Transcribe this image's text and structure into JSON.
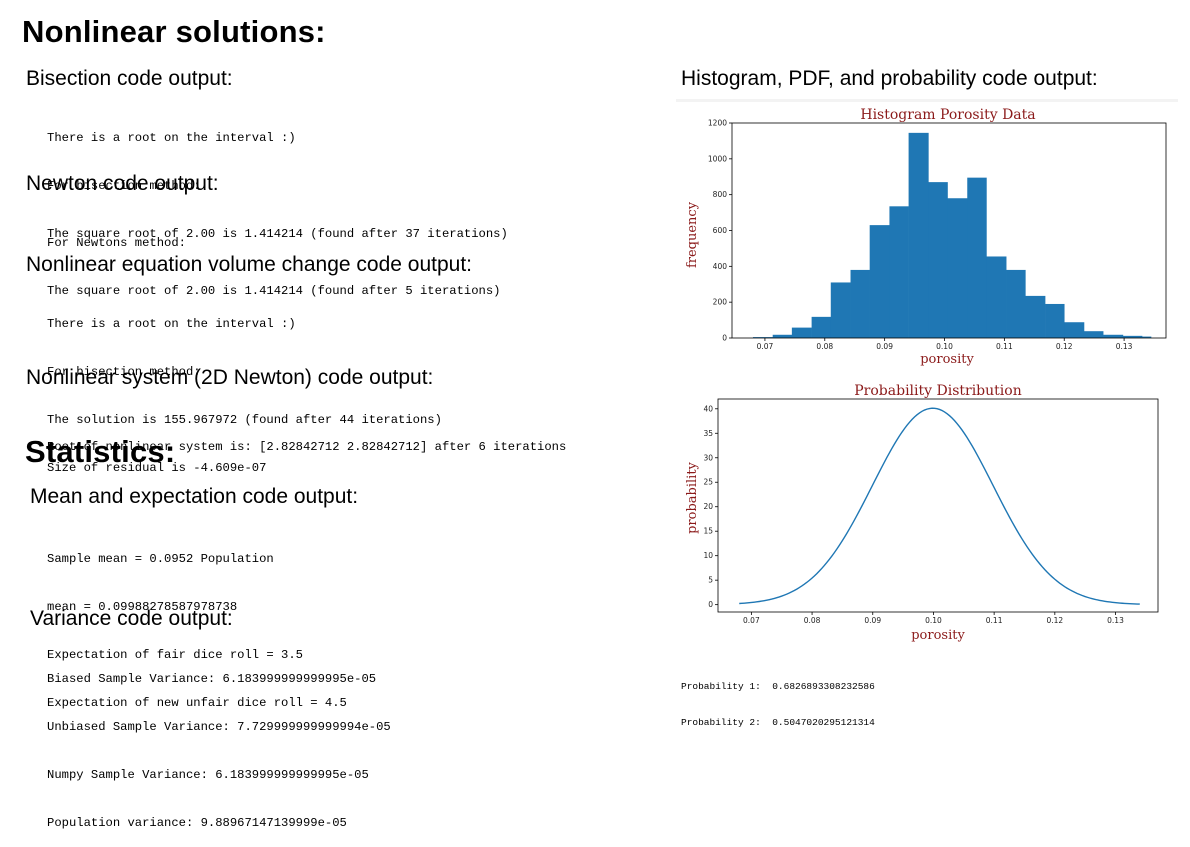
{
  "headings": {
    "nonlinear": "Nonlinear solutions:",
    "statistics": "Statistics:"
  },
  "sections": {
    "bisection": {
      "title": "Bisection code output:",
      "lines": [
        "There is a root on the interval :)",
        "For bisection method:",
        "The square root of 2.00 is 1.414214 (found after 37 iterations)"
      ]
    },
    "newton": {
      "title": "Newton code output:",
      "lines": [
        "For Newtons method:",
        "The square root of 2.00 is 1.414214 (found after 5 iterations)"
      ]
    },
    "volume": {
      "title": "Nonlinear equation volume change code output:",
      "lines": [
        "There is a root on the interval :)",
        "For bisection method:",
        "The solution is 155.967972 (found after 44 iterations)",
        "Size of residual is -4.609e-07"
      ]
    },
    "system": {
      "title": "Nonlinear system (2D Newton) code output:",
      "lines": [
        "Root of nonlinear system is: [2.82842712 2.82842712] after 6 iterations"
      ]
    },
    "mean": {
      "title": "Mean and expectation code output:",
      "lines": [
        "Sample mean = 0.0952 Population",
        "mean = 0.09988278587978738",
        "Expectation of fair dice roll = 3.5",
        "Expectation of new unfair dice roll = 4.5"
      ]
    },
    "variance": {
      "title": "Variance code output:",
      "lines": [
        "Biased Sample Variance: 6.183999999999995e-05",
        "Unbiased Sample Variance: 7.729999999999994e-05",
        "Numpy Sample Variance: 6.183999999999995e-05",
        "Population variance: 9.88967147139999e-05"
      ]
    },
    "histogram": {
      "title": "Histogram, PDF, and probability code output:"
    }
  },
  "probabilities": [
    "Probability 1:  0.6826893308232586",
    "Probability 2:  0.5047020295121314"
  ],
  "chart_data": [
    {
      "type": "bar",
      "title": "Histogram Porosity Data",
      "xlabel": "porosity",
      "ylabel": "frequency",
      "color": "#1f77b4",
      "bin_edges": [
        0.068,
        0.0713,
        0.0745,
        0.0778,
        0.081,
        0.0843,
        0.0875,
        0.0908,
        0.094,
        0.0973,
        0.1005,
        0.1038,
        0.107,
        0.1103,
        0.1135,
        0.1168,
        0.12,
        0.1233,
        0.1265,
        0.1298,
        0.133,
        0.1345
      ],
      "values": [
        5,
        18,
        58,
        118,
        310,
        380,
        630,
        735,
        1145,
        870,
        780,
        895,
        455,
        380,
        235,
        190,
        88,
        38,
        18,
        12,
        8
      ],
      "xticks": [
        0.07,
        0.08,
        0.09,
        0.1,
        0.11,
        0.12,
        0.13
      ],
      "xtick_labels": [
        "0.07",
        "0.08",
        "0.09",
        "0.10",
        "0.11",
        "0.12",
        "0.13"
      ],
      "xlim": [
        0.0645,
        0.137
      ],
      "yticks": [
        0,
        200,
        400,
        600,
        800,
        1000,
        1200
      ],
      "ylim": [
        0,
        1200
      ]
    },
    {
      "type": "line",
      "title": "Probability Distribution",
      "xlabel": "porosity",
      "ylabel": "probability",
      "color": "#1f77b4",
      "series": [
        {
          "mean": 0.09988278587978738,
          "std": 0.009944682,
          "x_range": [
            0.068,
            0.134
          ],
          "x": [
            0.068,
            0.072,
            0.076,
            0.08,
            0.084,
            0.088,
            0.092,
            0.096,
            0.1,
            0.104,
            0.108,
            0.112,
            0.116,
            0.12,
            0.124,
            0.128,
            0.132,
            0.134
          ],
          "values": [
            0.23,
            0.9,
            2.73,
            6.6,
            11.9,
            19.3,
            28.3,
            36.3,
            40.0,
            37.3,
            29.4,
            20.2,
            12.0,
            5.7,
            2.1,
            0.57,
            0.12,
            0.07
          ]
        }
      ],
      "xticks": [
        0.07,
        0.08,
        0.09,
        0.1,
        0.11,
        0.12,
        0.13
      ],
      "xtick_labels": [
        "0.07",
        "0.08",
        "0.09",
        "0.10",
        "0.11",
        "0.12",
        "0.13"
      ],
      "xlim": [
        0.0645,
        0.137
      ],
      "yticks": [
        0,
        5,
        10,
        15,
        20,
        25,
        30,
        35,
        40
      ],
      "ylim": [
        -1.5,
        42
      ]
    }
  ]
}
